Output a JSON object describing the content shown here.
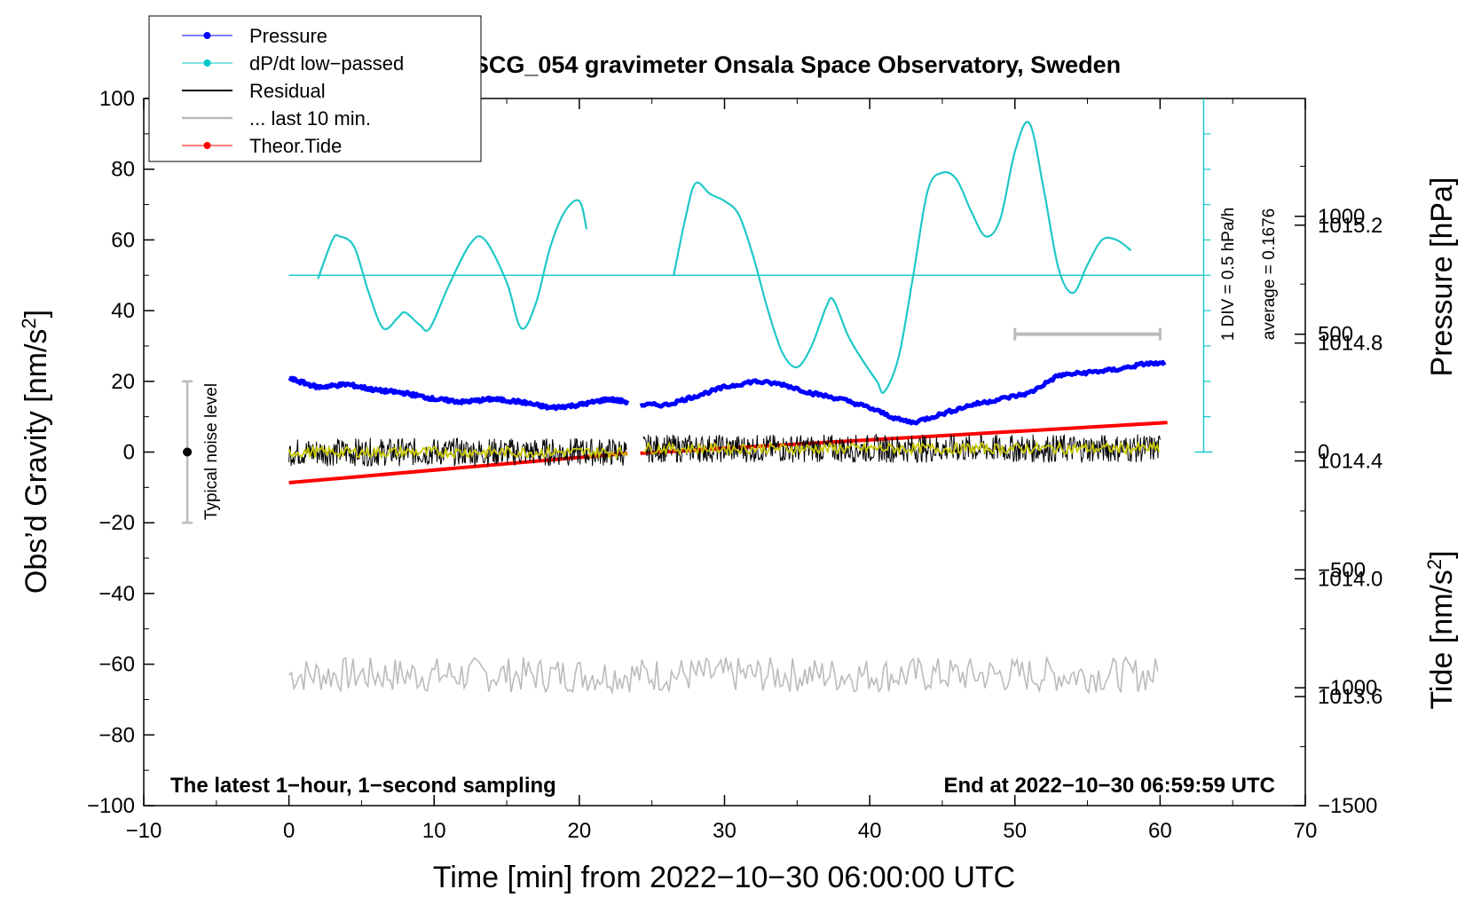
{
  "chart_data": {
    "type": "line",
    "title": "SCG_054 gravimeter Onsala Space Observatory, Sweden",
    "xlabel": "Time [min] from 2022−10−30 06:00:00 UTC",
    "ylabel_left": "Obs’d Gravity [nm/s²]",
    "ylabel_left_base": "Obs’d Gravity [nm/s",
    "ylabel_left_sup": "2",
    "ylabel_left_close": "]",
    "ylabel_right_pressure": "Pressure [hPa]",
    "ylabel_right_tide": "Tide [nm/s²]",
    "ylabel_right_tide_base": "Tide [nm/s",
    "ylabel_right_tide_sup": "2",
    "ylabel_right_tide_close": "]",
    "xlim": [
      -10,
      70
    ],
    "ylim_left": [
      -100,
      100
    ],
    "xticks": [
      "−10",
      "0",
      "10",
      "20",
      "30",
      "40",
      "50",
      "60",
      "70"
    ],
    "xtick_values": [
      -10,
      0,
      10,
      20,
      30,
      40,
      50,
      60,
      70
    ],
    "yticks_left": [
      "−100",
      "−80",
      "−60",
      "−40",
      "−20",
      "0",
      "20",
      "40",
      "60",
      "80",
      "100"
    ],
    "ytick_left_values": [
      -100,
      -80,
      -60,
      -40,
      -20,
      0,
      20,
      40,
      60,
      80,
      100
    ],
    "pressure_axis": {
      "ticks": [
        "1013.6",
        "1014.0",
        "1014.4",
        "1014.8",
        "1015.2"
      ],
      "tick_values": [
        1013.6,
        1014.0,
        1014.4,
        1014.8,
        1015.2
      ],
      "range": [
        1013.23,
        1015.63
      ]
    },
    "tide_axis": {
      "ticks": [
        "−1500",
        "−1000",
        "−500",
        "0",
        "500",
        "1000"
      ],
      "tick_values": [
        -1500,
        -1000,
        -500,
        0,
        500,
        1000
      ],
      "range": [
        -1500,
        1500
      ]
    },
    "legend": [
      {
        "label": "Pressure",
        "color": "#0000ff",
        "marker": true
      },
      {
        "label": "dP/dt low−passed",
        "color": "#00c8c8",
        "marker": true
      },
      {
        "label": "Residual",
        "color": "#000000",
        "marker": false
      },
      {
        "label": "... last 10 min.",
        "color": "#bbbbbb",
        "marker": false
      },
      {
        "label": "Theor.Tide",
        "color": "#ff0000",
        "marker": true
      }
    ],
    "annotations": {
      "bottom_left": "The latest 1−hour, 1−second sampling",
      "bottom_right": "End at 2022−10−30 06:59:59 UTC",
      "noise_label": "Typical noise level",
      "dpdt_scale": "1 DIV = 0.5 hPa/h",
      "dpdt_average": "average = 0.1676"
    },
    "noise_bar": {
      "x": -7,
      "y_center": 0,
      "y_low": -20,
      "y_high": 20
    },
    "last10_bar": {
      "x_start": 50,
      "x_end": 60,
      "tide_value": 500
    },
    "dpdt_baseline_y": 50,
    "dpdt_scale_axis": {
      "x": 63,
      "y_min": 0,
      "y_max": 100,
      "divisions": 10
    },
    "series": [
      {
        "name": "Pressure",
        "axis": "pressure",
        "color": "#0000ff",
        "segments": [
          {
            "x": [
              0,
              2,
              4,
              6,
              8,
              10,
              12,
              14,
              16,
              18,
              20,
              22,
              23.3
            ],
            "y": [
              1014.68,
              1014.65,
              1014.66,
              1014.64,
              1014.63,
              1014.61,
              1014.6,
              1014.61,
              1014.6,
              1014.58,
              1014.59,
              1014.61,
              1014.6
            ]
          },
          {
            "x": [
              24.2,
              26,
              28,
              30,
              32,
              34,
              36,
              38,
              40,
              42,
              43,
              45,
              47,
              49,
              51,
              53,
              55,
              57,
              59,
              60.3
            ],
            "y": [
              1014.59,
              1014.59,
              1014.62,
              1014.65,
              1014.67,
              1014.66,
              1014.63,
              1014.61,
              1014.58,
              1014.54,
              1014.53,
              1014.56,
              1014.59,
              1014.61,
              1014.63,
              1014.69,
              1014.7,
              1014.71,
              1014.73,
              1014.73
            ]
          }
        ]
      },
      {
        "name": "dP/dt low−passed",
        "axis": "left",
        "color": "#20c8c8",
        "segments": [
          {
            "x": [
              2,
              3,
              3.5,
              4.5,
              5.5,
              6.5,
              7.5,
              8,
              9,
              9.7,
              11,
              12.5,
              13.5,
              15,
              16,
              17,
              18,
              19,
              20,
              20.5
            ],
            "y": [
              49,
              60,
              61,
              58,
              45,
              35,
              38,
              39.5,
              36,
              35,
              47,
              59,
              60,
              48,
              35,
              42,
              58,
              68,
              71,
              63
            ]
          },
          {
            "x": [
              26.5,
              27.3,
              28,
              29,
              30,
              31,
              32,
              33,
              34,
              35,
              36,
              37,
              37.5,
              38.5,
              39.5,
              40.5,
              41,
              42,
              43,
              44,
              45,
              46,
              47,
              48,
              49,
              50,
              51,
              52,
              53,
              54,
              55,
              56,
              57,
              58
            ],
            "y": [
              50,
              66,
              76,
              73,
              71,
              67,
              55,
              40,
              28,
              24,
              30,
              41,
              43,
              33,
              26,
              20,
              17,
              27,
              50,
              74,
              79,
              77,
              68,
              61,
              66,
              85,
              93,
              74,
              52,
              45,
              53,
              60,
              60,
              57
            ]
          }
        ]
      },
      {
        "name": "Residual",
        "axis": "left",
        "color": "#000000",
        "segments": [
          {
            "x": [
              0,
              23.3
            ],
            "noise_amplitude": 4,
            "mean": 0
          },
          {
            "x": [
              24.4,
              60
            ],
            "noise_amplitude": 4,
            "mean": 1
          }
        ]
      },
      {
        "name": "Residual smoothed",
        "axis": "left",
        "color": "#c8c800",
        "segments": [
          {
            "x": [
              0,
              23.3
            ],
            "noise_amplitude": 1.5,
            "mean": 0
          },
          {
            "x": [
              24.4,
              60
            ],
            "noise_amplitude": 1.5,
            "mean": 1
          }
        ]
      },
      {
        "name": "... last 10 min.",
        "axis": "left",
        "color": "#bbbbbb",
        "segments": [
          {
            "x": [
              0,
              60
            ],
            "noise_amplitude": 5,
            "mean": -63
          }
        ]
      },
      {
        "name": "Theor.Tide",
        "axis": "tide",
        "color": "#ff0000",
        "segments": [
          {
            "x": [
              0,
              23.3
            ],
            "y": [
              -130,
              -5
            ]
          },
          {
            "x": [
              24.2,
              60.5
            ],
            "y": [
              -5,
              125
            ]
          }
        ]
      }
    ]
  }
}
